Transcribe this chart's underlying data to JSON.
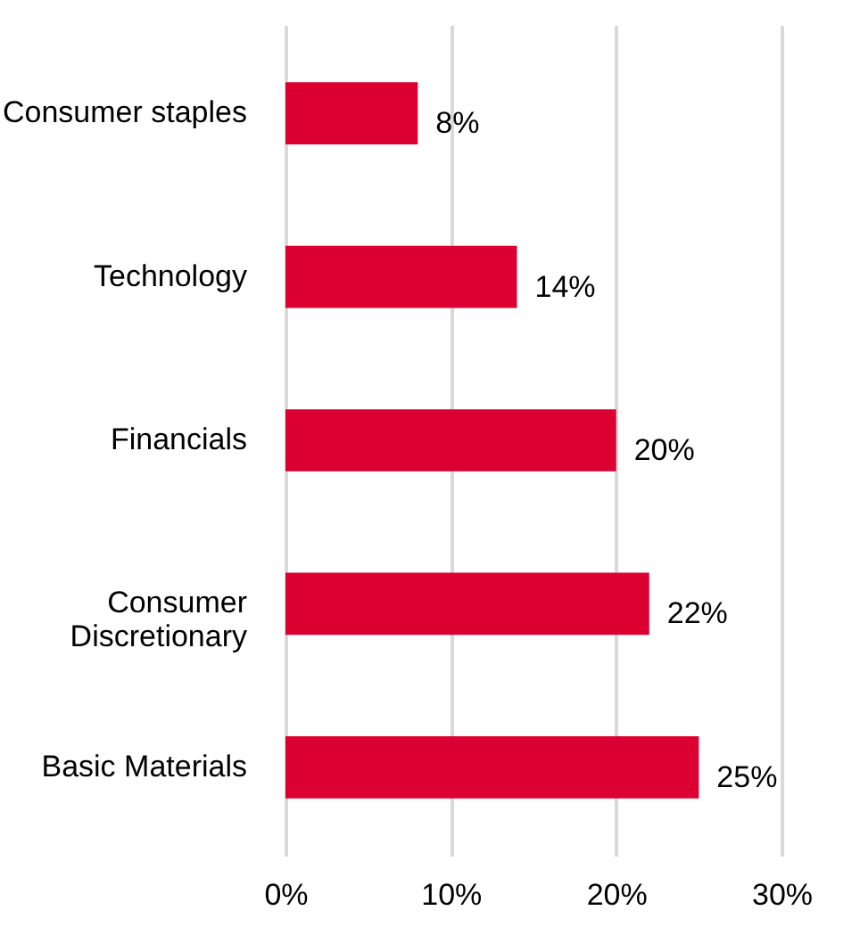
{
  "chart_data": {
    "type": "bar",
    "orientation": "horizontal",
    "categories": [
      "Consumer staples",
      "Technology",
      "Financials",
      "Consumer Discretionary",
      "Basic Materials"
    ],
    "values": [
      8,
      14,
      20,
      22,
      25
    ],
    "value_labels": [
      "8%",
      "14%",
      "20%",
      "22%",
      "25%"
    ],
    "color": "#dc0032",
    "xlim": [
      0,
      30
    ],
    "xticks": [
      {
        "value": 0,
        "label": "0%"
      },
      {
        "value": 10,
        "label": "10%"
      },
      {
        "value": 20,
        "label": "20%"
      },
      {
        "value": 30,
        "label": "30%"
      }
    ],
    "grid": "x"
  }
}
